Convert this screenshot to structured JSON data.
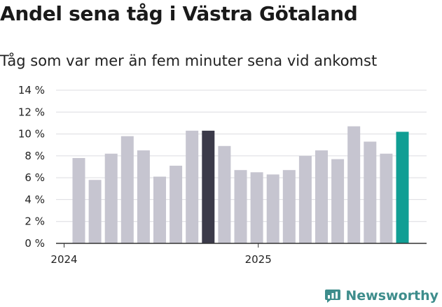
{
  "chart_data": {
    "type": "bar",
    "title": "Andel sena tåg i Västra Götaland",
    "subtitle": "Tåg som var mer än fem minuter sena vid ankomst",
    "xlabel": "",
    "ylabel": "",
    "ylim": [
      0,
      14
    ],
    "y_ticks": [
      0,
      2,
      4,
      6,
      8,
      10,
      12,
      14
    ],
    "y_tick_labels": [
      "0 %",
      "2 %",
      "4 %",
      "6 %",
      "8 %",
      "10 %",
      "12 %",
      "14 %"
    ],
    "x_tick_labels": [
      {
        "label": "2024",
        "index": 0
      },
      {
        "label": "2025",
        "index": 12
      }
    ],
    "values": [
      7.8,
      5.8,
      8.2,
      9.8,
      8.5,
      6.1,
      7.1,
      10.3,
      10.3,
      8.9,
      6.7,
      6.5,
      6.3,
      6.7,
      8.0,
      8.5,
      7.7,
      10.7,
      9.3,
      8.2,
      10.2
    ],
    "highlight": {
      "8": "#3b3a49",
      "20": "#109e94"
    },
    "default_bar_color": "#c6c5d0",
    "grid": true
  },
  "brand": {
    "name": "Newsworthy",
    "icon": "newsworthy-logo-icon",
    "color": "#3e8d8c"
  }
}
